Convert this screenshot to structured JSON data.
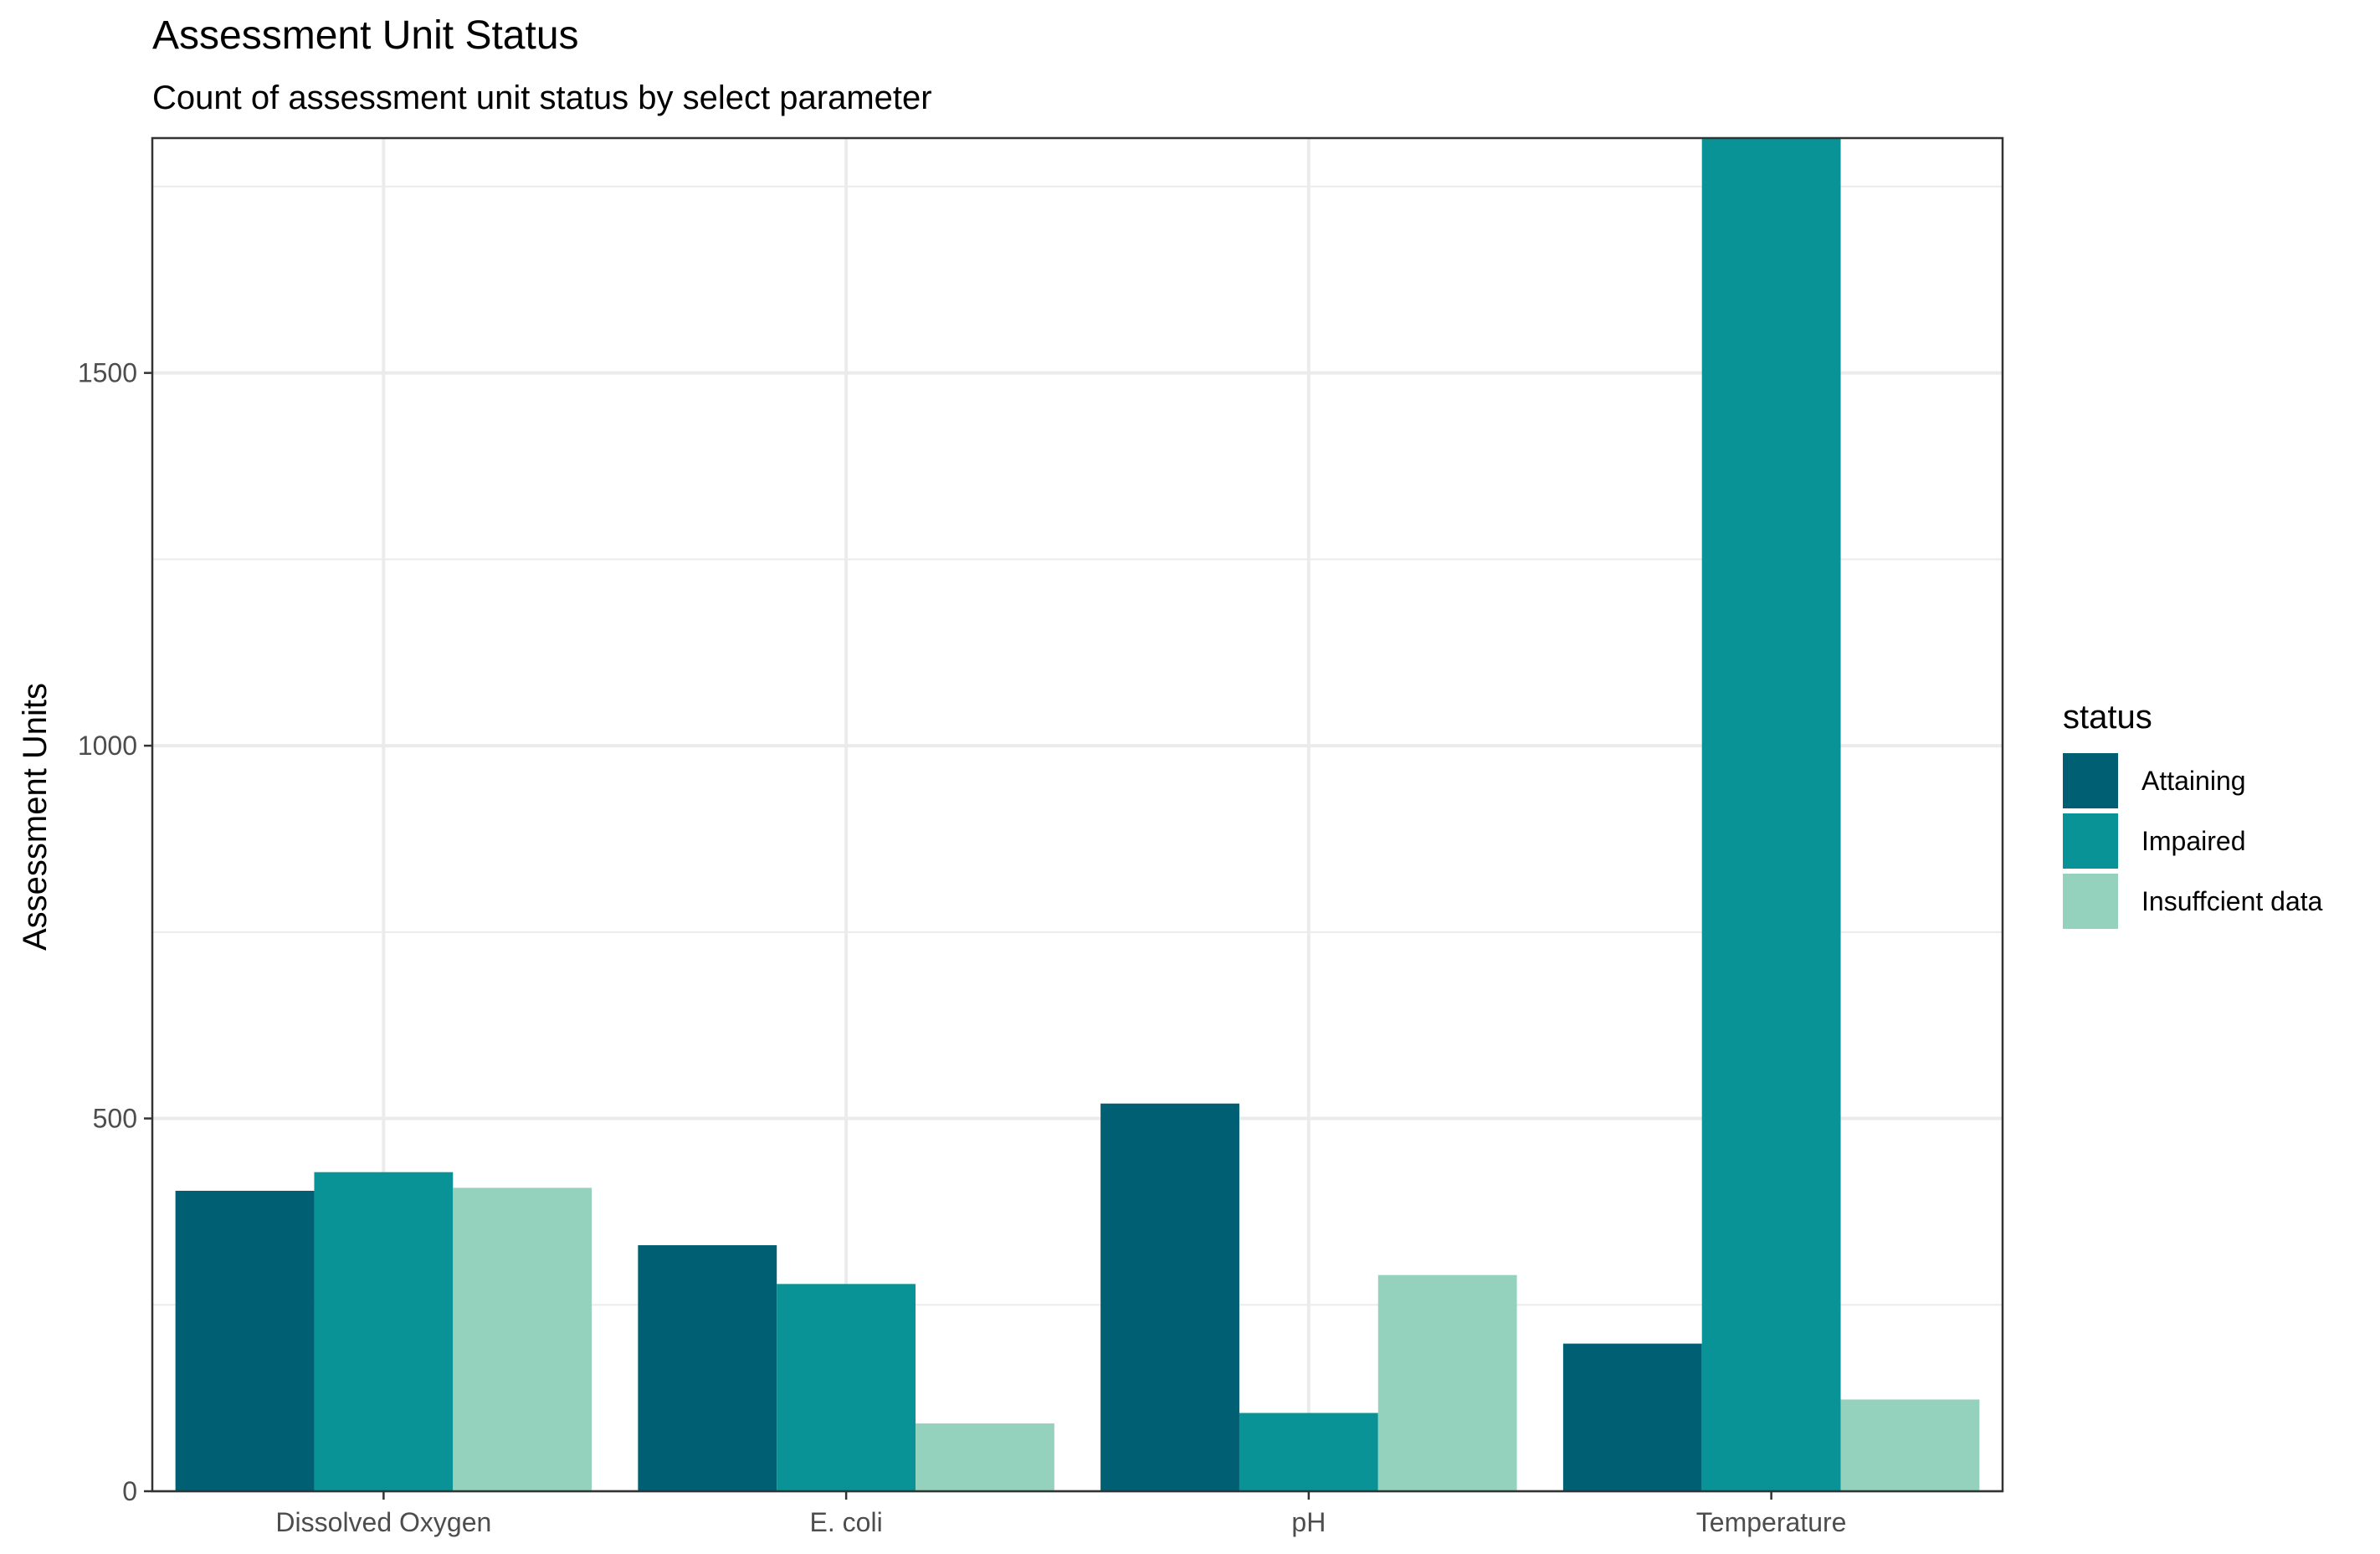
{
  "chart_data": {
    "type": "bar",
    "title": "Assessment Unit Status",
    "subtitle": "Count of assessment unit status by select parameter",
    "xlabel": "",
    "ylabel": "Assessment Units",
    "categories": [
      "Dissolved Oxygen",
      "E. coli",
      "pH",
      "Temperature"
    ],
    "series": [
      {
        "name": "Attaining",
        "color": "#005F73",
        "values": [
          403,
          330,
          520,
          198
        ]
      },
      {
        "name": "Impaired",
        "color": "#0A9396",
        "values": [
          428,
          278,
          105,
          1815
        ]
      },
      {
        "name": "Insuffcient data",
        "color": "#94D2BD",
        "values": [
          407,
          91,
          290,
          123
        ]
      }
    ],
    "ylim": [
      0,
      1815
    ],
    "yticks": [
      0,
      500,
      1000,
      1500
    ],
    "ytick_labels": [
      "0",
      "500",
      "1000",
      "1500"
    ],
    "legend": {
      "title": "status",
      "position": "right"
    },
    "grid": true,
    "grid_color": "#EBEBEB",
    "panel_border_color": "#333333"
  }
}
